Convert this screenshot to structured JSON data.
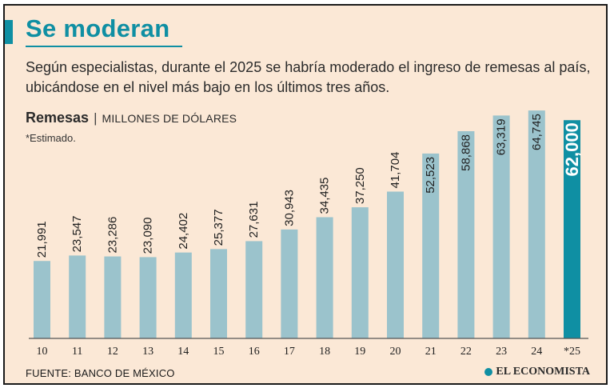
{
  "header": {
    "title": "Se moderan",
    "subtitle": "Según especialistas, durante el 2025 se habría moderado el ingreso de remesas al país, ubicándose en el nivel más bajo en los últimos tres años."
  },
  "chart_head": {
    "label": "Remesas",
    "separator": "|",
    "unit": "MILLONES DE DÓLARES"
  },
  "note": "*Estimado.",
  "footer": {
    "source": "FUENTE: BANCO DE MÉXICO",
    "brand": "EL ECONOMISTA"
  },
  "colors": {
    "bar": "#9bc3cc",
    "highlight": "#0f8fa3",
    "background": "#fbe8d6"
  },
  "chart_data": {
    "type": "bar",
    "categories": [
      "10",
      "11",
      "12",
      "13",
      "14",
      "15",
      "16",
      "17",
      "18",
      "19",
      "20",
      "21",
      "22",
      "23",
      "24",
      "*25"
    ],
    "values": [
      21991,
      23547,
      23286,
      23090,
      24402,
      25377,
      27631,
      30943,
      34435,
      37250,
      41704,
      52523,
      58868,
      63319,
      64745,
      62000
    ],
    "value_labels": [
      "21,991",
      "23,547",
      "23,286",
      "23,090",
      "24,402",
      "25,377",
      "27,631",
      "30,943",
      "34,435",
      "37,250",
      "41,704",
      "52,523",
      "58,868",
      "63,319",
      "64,745",
      "62,000"
    ],
    "highlight_index": 15,
    "ylim": [
      0,
      65000
    ],
    "grid": false,
    "legend": "none"
  }
}
